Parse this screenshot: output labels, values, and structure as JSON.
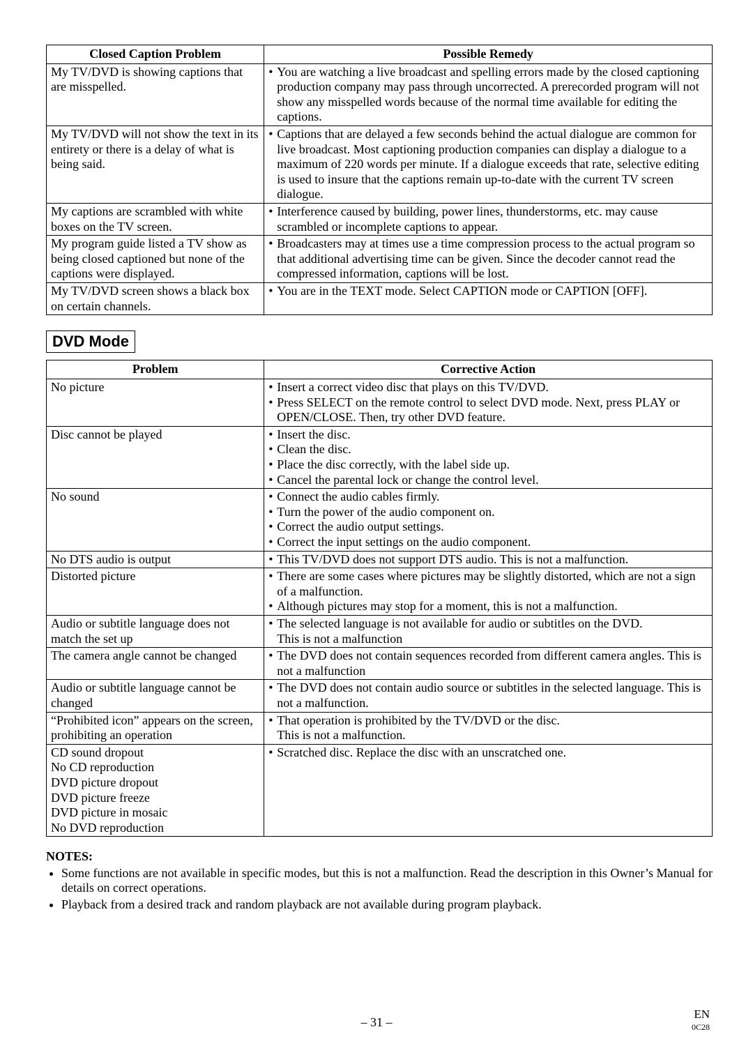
{
  "table1": {
    "col_widths": [
      "32.7%",
      "67.3%"
    ],
    "headers": [
      "Closed Caption Problem",
      "Possible Remedy"
    ],
    "rows": [
      {
        "problem": [
          "My TV/DVD is showing captions that are misspelled."
        ],
        "remedy": [
          {
            "b": true,
            "t": "You are watching a live broadcast and spelling errors made by the closed captioning production company may pass through uncorrected. A prerecorded program will not show any misspelled words because of the normal time available for editing the captions."
          }
        ]
      },
      {
        "problem": [
          "My TV/DVD will not show the text in its entirety or there is a delay of what is being said."
        ],
        "remedy": [
          {
            "b": true,
            "t": "Captions that are delayed a few seconds behind the actual dialogue are common for live broadcast. Most captioning production companies can display a dialogue to a maximum of 220 words per minute. If a dialogue exceeds that rate, selective editing is used to insure that the captions remain up-to-date with the current TV screen dialogue."
          }
        ]
      },
      {
        "problem": [
          "My captions are scrambled with white boxes on the TV screen."
        ],
        "remedy": [
          {
            "b": true,
            "t": "Interference caused by building, power lines, thunderstorms, etc. may cause scrambled or incomplete captions to appear."
          }
        ]
      },
      {
        "problem": [
          "My program guide listed a TV show as being closed captioned but none of the captions were displayed."
        ],
        "remedy": [
          {
            "b": true,
            "t": "Broadcasters may at times use a time compression process to the actual program so that additional advertising time can be given. Since the decoder cannot read the compressed information, captions will be lost."
          }
        ]
      },
      {
        "problem": [
          "My TV/DVD screen shows a black box on certain channels."
        ],
        "remedy": [
          {
            "b": true,
            "t": "You are in the TEXT mode. Select CAPTION mode or CAPTION [OFF]."
          }
        ]
      }
    ]
  },
  "section_title": "DVD Mode",
  "table2": {
    "col_widths": [
      "32.7%",
      "67.3%"
    ],
    "headers": [
      "Problem",
      "Corrective Action"
    ],
    "rows": [
      {
        "problem": [
          "No picture"
        ],
        "remedy": [
          {
            "b": true,
            "t": "Insert a correct video disc that plays on this TV/DVD."
          },
          {
            "b": true,
            "t": "Press SELECT on the remote control to select DVD mode. Next, press PLAY or OPEN/CLOSE. Then, try other DVD feature."
          }
        ]
      },
      {
        "problem": [
          "Disc cannot be played"
        ],
        "remedy": [
          {
            "b": true,
            "t": "Insert the disc."
          },
          {
            "b": true,
            "t": "Clean the disc."
          },
          {
            "b": true,
            "t": "Place the disc correctly, with the label side up."
          },
          {
            "b": true,
            "t": "Cancel the parental lock or change the control level."
          }
        ]
      },
      {
        "problem": [
          "No sound"
        ],
        "remedy": [
          {
            "b": true,
            "t": "Connect the audio cables firmly."
          },
          {
            "b": true,
            "t": "Turn the power of the audio component on."
          },
          {
            "b": true,
            "t": "Correct the audio output settings."
          },
          {
            "b": true,
            "t": "Correct the input settings on the audio component."
          }
        ]
      },
      {
        "problem": [
          "No DTS audio is output"
        ],
        "remedy": [
          {
            "b": true,
            "t": "This TV/DVD does not support DTS audio. This is not a malfunction."
          }
        ]
      },
      {
        "problem": [
          "Distorted picture"
        ],
        "remedy": [
          {
            "b": true,
            "t": "There are some cases where pictures may be slightly distorted, which are not a sign of a malfunction."
          },
          {
            "b": true,
            "t": "Although pictures may stop for a moment, this is not a malfunction."
          }
        ]
      },
      {
        "problem": [
          "Audio or subtitle language does not match the set up"
        ],
        "remedy": [
          {
            "b": true,
            "t": "The selected language is not available for audio or subtitles on the DVD."
          },
          {
            "b": false,
            "t": "This is not a malfunction"
          }
        ]
      },
      {
        "problem": [
          "The camera angle cannot be changed"
        ],
        "remedy": [
          {
            "b": true,
            "t": "The DVD does not contain sequences recorded from different camera angles. This is not a malfunction"
          }
        ]
      },
      {
        "problem": [
          "Audio or subtitle language cannot be changed"
        ],
        "remedy": [
          {
            "b": true,
            "t": "The DVD does not contain audio source or subtitles in the selected language. This is not a malfunction."
          }
        ]
      },
      {
        "problem": [
          "“Prohibited icon” appears on the screen, prohibiting an operation"
        ],
        "remedy": [
          {
            "b": true,
            "t": "That operation is prohibited by the TV/DVD or the disc."
          },
          {
            "b": false,
            "t": "This is not a malfunction."
          }
        ]
      },
      {
        "problem": [
          "CD sound dropout",
          "No CD reproduction",
          "DVD picture dropout",
          "DVD picture freeze",
          "DVD picture in mosaic",
          "No DVD reproduction"
        ],
        "remedy": [
          {
            "b": true,
            "t": "Scratched disc. Replace the disc with an unscratched one."
          }
        ]
      }
    ]
  },
  "notes": {
    "heading": "NOTES:",
    "items": [
      "Some functions are not available in specific modes, but this is not a malfunction. Read the description in this Owner’s Manual for details on correct operations.",
      "Playback from a desired track and random playback are not available during program playback."
    ]
  },
  "footer": {
    "page": "– 31 –",
    "lang": "EN",
    "code": "0C28"
  }
}
